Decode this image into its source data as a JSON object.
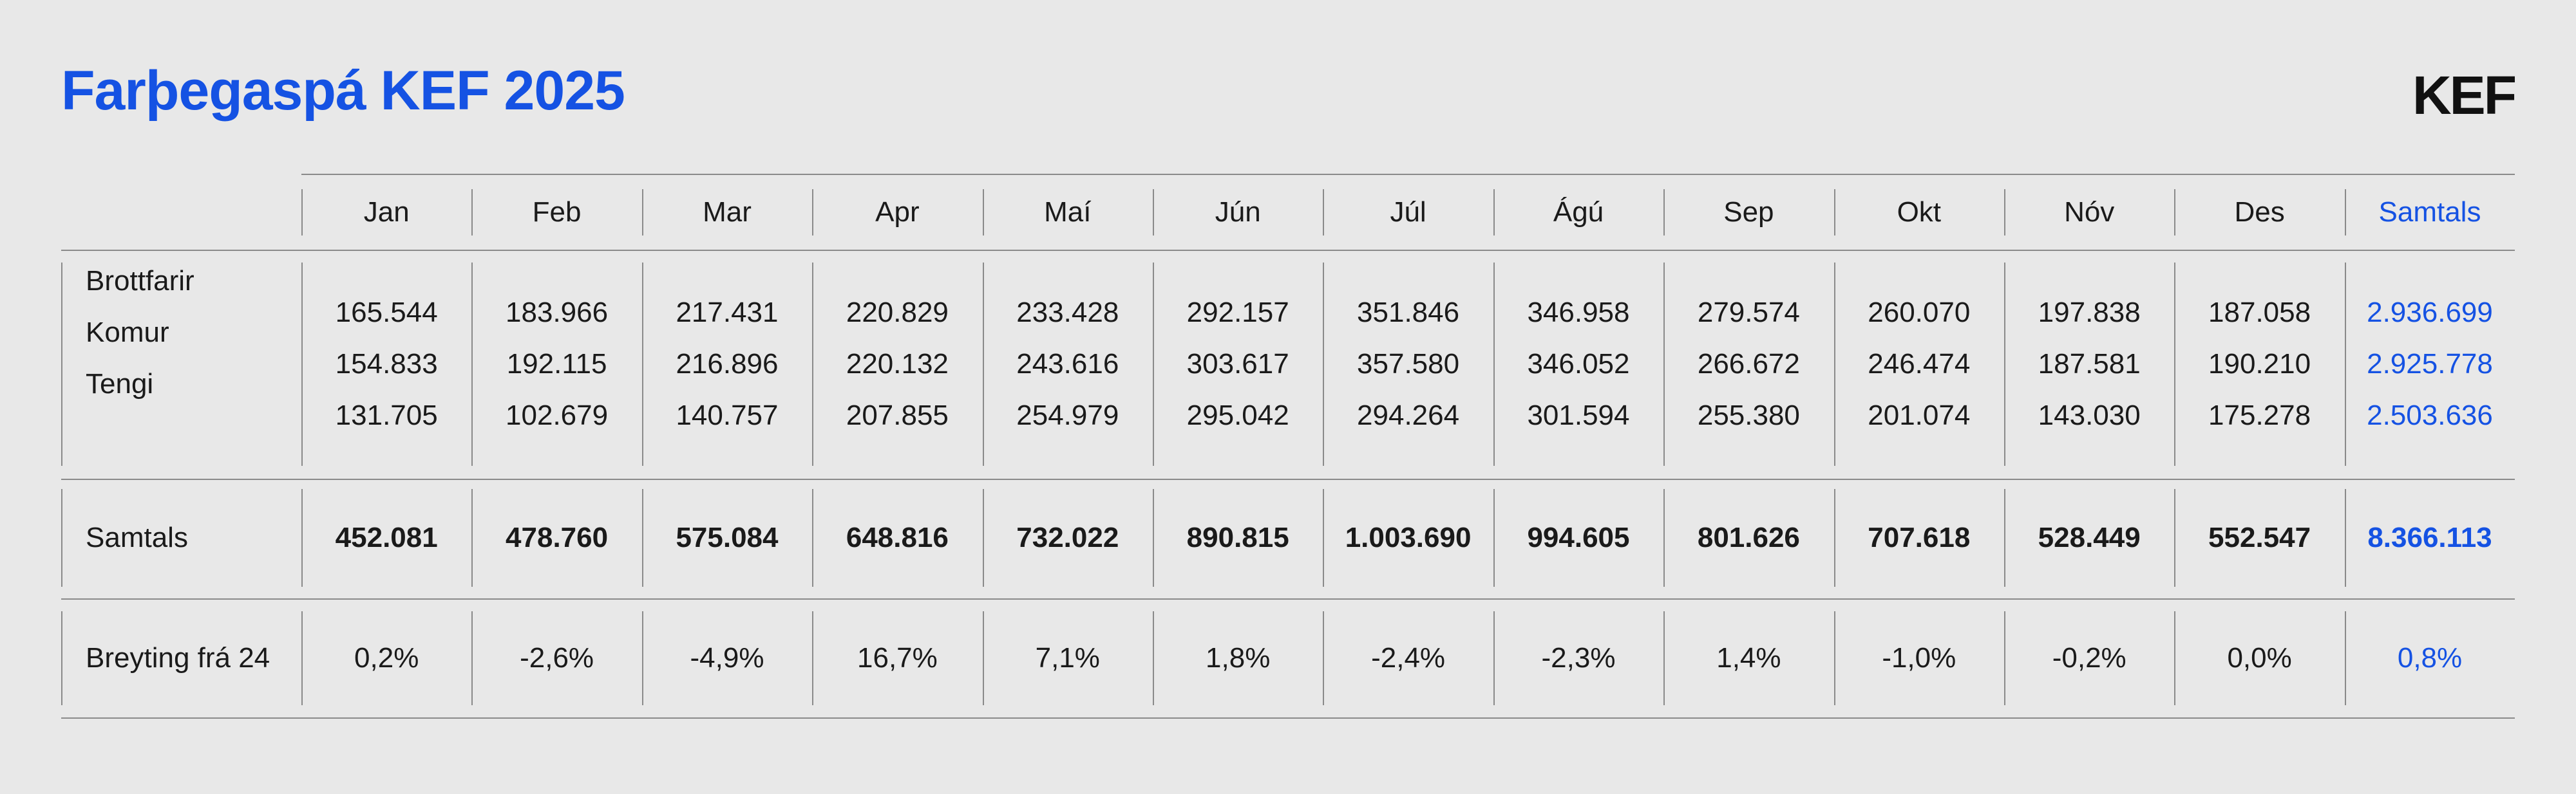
{
  "title": "Farþegaspá KEF 2025",
  "logo_text": "KEF",
  "months": [
    "Jan",
    "Feb",
    "Mar",
    "Apr",
    "Maí",
    "Jún",
    "Júl",
    "Ágú",
    "Sep",
    "Okt",
    "Nóv",
    "Des"
  ],
  "total_header": "Samtals",
  "rows": {
    "labels": [
      "Brottfarir",
      "Komur",
      "Tengi"
    ],
    "brottfarir": [
      "165.544",
      "183.966",
      "217.431",
      "220.829",
      "233.428",
      "292.157",
      "351.846",
      "346.958",
      "279.574",
      "260.070",
      "197.838",
      "187.058"
    ],
    "komur": [
      "154.833",
      "192.115",
      "216.896",
      "220.132",
      "243.616",
      "303.617",
      "357.580",
      "346.052",
      "266.672",
      "246.474",
      "187.581",
      "190.210"
    ],
    "tengi": [
      "131.705",
      "102.679",
      "140.757",
      "207.855",
      "254.979",
      "295.042",
      "294.264",
      "301.594",
      "255.380",
      "201.074",
      "143.030",
      "175.278"
    ],
    "totals": [
      "2.936.699",
      "2.925.778",
      "2.503.636"
    ]
  },
  "samtals": {
    "label": "Samtals",
    "values": [
      "452.081",
      "478.760",
      "575.084",
      "648.816",
      "732.022",
      "890.815",
      "1.003.690",
      "994.605",
      "801.626",
      "707.618",
      "528.449",
      "552.547"
    ],
    "total": "8.366.113"
  },
  "breyting": {
    "label": "Breyting frá 24",
    "values": [
      "0,2%",
      "-2,6%",
      "-4,9%",
      "16,7%",
      "7,1%",
      "1,8%",
      "-2,4%",
      "-2,3%",
      "1,4%",
      "-1,0%",
      "-0,2%",
      "0,0%"
    ],
    "total": "0,8%"
  },
  "colors": {
    "accent": "#1552e3",
    "background": "#e8e8e8",
    "rule": "#8a8a8a"
  }
}
